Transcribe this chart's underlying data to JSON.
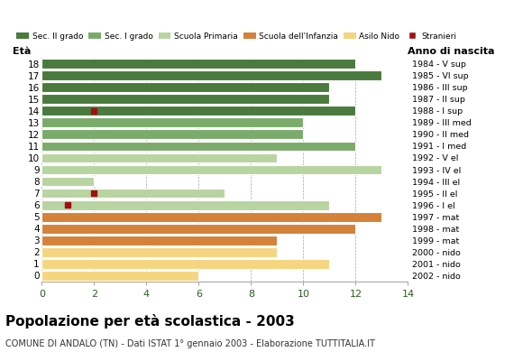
{
  "ages": [
    18,
    17,
    16,
    15,
    14,
    13,
    12,
    11,
    10,
    9,
    8,
    7,
    6,
    5,
    4,
    3,
    2,
    1,
    0
  ],
  "values": [
    12,
    13,
    11,
    11,
    12,
    10,
    10,
    12,
    9,
    13,
    2,
    7,
    11,
    13,
    12,
    9,
    9,
    11,
    6
  ],
  "stranieri": [
    0,
    0,
    0,
    0,
    2,
    0,
    0,
    0,
    0,
    0,
    0,
    2,
    1,
    0,
    0,
    0,
    0,
    0,
    0
  ],
  "categories": {
    "sec2": [
      18,
      17,
      16,
      15,
      14
    ],
    "sec1": [
      13,
      12,
      11
    ],
    "primaria": [
      10,
      9,
      8,
      7,
      6
    ],
    "infanzia": [
      5,
      4,
      3
    ],
    "nido": [
      2,
      1,
      0
    ]
  },
  "anno_nascita": {
    "18": "1984 - V sup",
    "17": "1985 - VI sup",
    "16": "1986 - III sup",
    "15": "1987 - II sup",
    "14": "1988 - I sup",
    "13": "1989 - III med",
    "12": "1990 - II med",
    "11": "1991 - I med",
    "10": "1992 - V el",
    "9": "1993 - IV el",
    "8": "1994 - III el",
    "7": "1995 - II el",
    "6": "1996 - I el",
    "5": "1997 - mat",
    "4": "1998 - mat",
    "3": "1999 - mat",
    "2": "2000 - nido",
    "1": "2001 - nido",
    "0": "2002 - nido"
  },
  "colors": {
    "sec2": "#4a7a3d",
    "sec1": "#7aab6a",
    "primaria": "#b8d4a0",
    "infanzia": "#d4813a",
    "nido": "#f5d580",
    "stranieri": "#a01010"
  },
  "legend_labels": [
    "Sec. II grado",
    "Sec. I grado",
    "Scuola Primaria",
    "Scuola dell'Infanzia",
    "Asilo Nido",
    "Stranieri"
  ],
  "title": "Popolazione per età scolastica - 2003",
  "subtitle": "COMUNE DI ANDALO (TN) - Dati ISTAT 1° gennaio 2003 - Elaborazione TUTTITALIA.IT",
  "xlabel_eta": "Età",
  "xlabel_anno": "Anno di nascita",
  "xlim": [
    0,
    14
  ],
  "background_color": "#ffffff"
}
